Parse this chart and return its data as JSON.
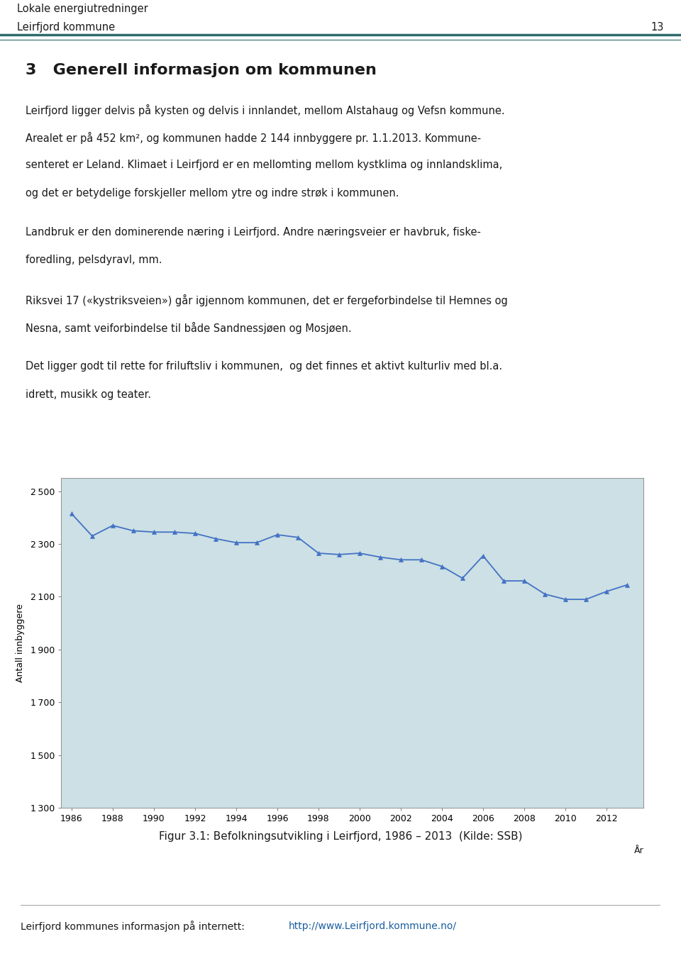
{
  "header_line1": "Lokale energiutredninger",
  "header_line2": "Leirfjord kommune",
  "header_page": "13",
  "header_color": "#2d6b6b",
  "section_title": "3   Generell informasjon om kommunen",
  "para1_line1": "Leirfjord ligger delvis på kysten og delvis i innlandet, mellom Alstahaug og Vefsn kommune.",
  "para1_line2": "Arealet er på 452 km², og kommunen hadde 2 144 innbyggere pr. 1.1.2013. Kommune-",
  "para1_line3": "senteret er Leland. Klimaet i Leirfjord er en mellomting mellom kystklima og innlandsklima,",
  "para1_line4": "og det er betydelige forskjeller mellom ytre og indre strøk i kommunen.",
  "para2_line1": "Landbruk er den dominerende næring i Leirfjord. Andre næringsveier er havbruk, fiske-",
  "para2_line2": "foredling, pelsdyravl, mm.",
  "para3_line1": "Riksvei 17 («kystriksveien») går igjennom kommunen, det er fergeforbindelse til Hemnes og",
  "para3_line2": "Nesna, samt veiforbindelse til både Sandnessjøen og Mosjøen.",
  "para4_line1": "Det ligger godt til rette for friluftsliv i kommunen,  og det finnes et aktivt kulturliv med bl.a.",
  "para4_line2": "idrett, musikk og teater.",
  "years": [
    1986,
    1987,
    1988,
    1989,
    1990,
    1991,
    1992,
    1993,
    1994,
    1995,
    1996,
    1997,
    1998,
    1999,
    2000,
    2001,
    2002,
    2003,
    2004,
    2005,
    2006,
    2007,
    2008,
    2009,
    2010,
    2011,
    2012,
    2013
  ],
  "population": [
    2415,
    2330,
    2370,
    2350,
    2345,
    2345,
    2340,
    2320,
    2305,
    2305,
    2335,
    2325,
    2265,
    2260,
    2265,
    2250,
    2240,
    2240,
    2215,
    2170,
    2255,
    2160,
    2160,
    2110,
    2090,
    2090,
    2120,
    2145
  ],
  "chart_bg_color": "#cce0e5",
  "line_color": "#4472c4",
  "marker_color": "#4472c4",
  "marker_style": "^",
  "marker_size": 5,
  "ylabel": "Antall innbyggere",
  "xlabel": "År",
  "ylim": [
    1300,
    2550
  ],
  "yticks": [
    1300,
    1500,
    1700,
    1900,
    2100,
    2300,
    2500
  ],
  "xlim": [
    1985.5,
    2013.8
  ],
  "xticks": [
    1986,
    1988,
    1990,
    1992,
    1994,
    1996,
    1998,
    2000,
    2002,
    2004,
    2006,
    2008,
    2010,
    2012
  ],
  "fig_caption": "Figur 3.1: Befolkningsutvikling i Leirfjord, 1986 – 2013  (Kilde: SSB)",
  "footer_text": "Leirfjord kommunes informasjon på internett: ",
  "footer_link": "http://www.Leirfjord.kommune.no/",
  "page_bg": "#ffffff",
  "text_color": "#1a1a1a",
  "link_color": "#1a5e9e"
}
